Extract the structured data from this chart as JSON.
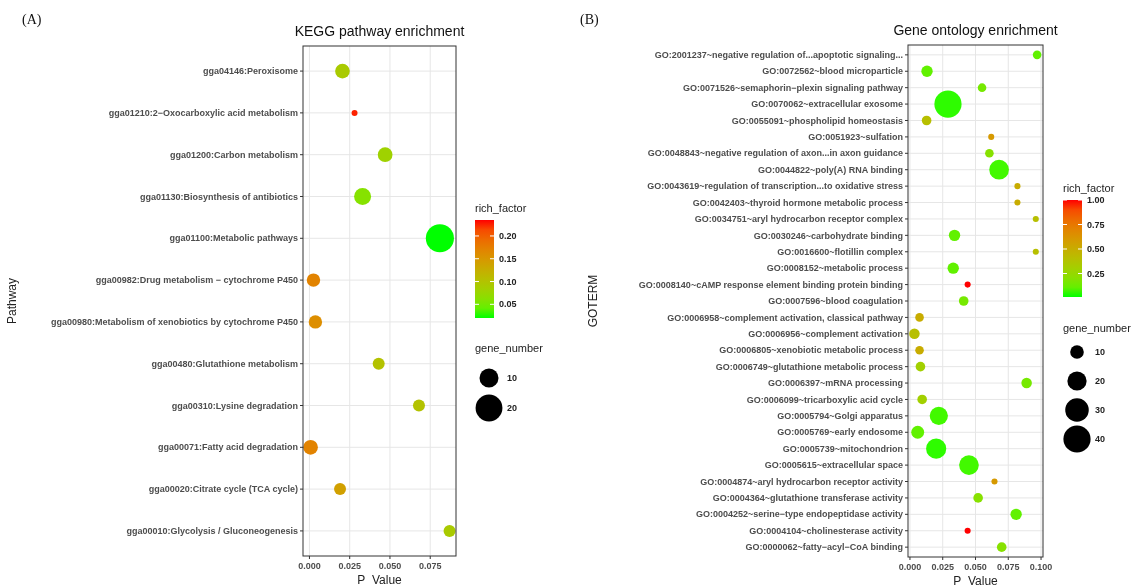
{
  "chart_data": [
    {
      "type": "bubble",
      "orientation": "horizontal",
      "title": "KEGG pathway enrichment",
      "xlabel": "P_Value",
      "ylabel": "Pathway",
      "clabel": "rich_factor",
      "legend_title": "gene_number",
      "grid": true,
      "annotations": [
        "(A)"
      ],
      "categories": [
        "gga04146:Peroxisome",
        "gga01210:2−Oxocarboxylic acid metabolism",
        "gga01200:Carbon metabolism",
        "gga01130:Biosynthesis of antibiotics",
        "gga01100:Metabolic pathways",
        "gga00982:Drug metabolism − cytochrome P450",
        "gga00980:Metabolism of xenobiotics by cytochrome P450",
        "gga00480:Glutathione metabolism",
        "gga00310:Lysine degradation",
        "gga00071:Fatty acid degradation",
        "gga00020:Citrate cycle (TCA cycle)",
        "gga00010:Glycolysis / Gluconeogenesis"
      ],
      "values": [
        0.0205,
        0.028,
        0.047,
        0.033,
        0.081,
        0.0025,
        0.0037,
        0.043,
        0.068,
        0.0007,
        0.019,
        0.087
      ],
      "sizes": [
        6,
        1,
        6,
        8,
        22,
        5,
        5,
        4,
        4,
        6,
        4,
        4
      ],
      "cvalues": [
        0.09,
        0.23,
        0.08,
        0.06,
        0.02,
        0.17,
        0.16,
        0.1,
        0.1,
        0.17,
        0.14,
        0.09
      ],
      "size_legend": [
        10,
        20
      ],
      "xlim": [
        -0.004,
        0.091
      ],
      "xticks": [
        {
          "value": 0,
          "label": "0.000"
        },
        {
          "value": 0.025,
          "label": "0.025"
        },
        {
          "value": 0.05,
          "label": "0.050"
        },
        {
          "value": 0.075,
          "label": "0.075"
        }
      ],
      "clim": [
        0.02,
        0.235
      ],
      "cticks": [
        {
          "value": 0.05,
          "label": "0.05"
        },
        {
          "value": 0.1,
          "label": "0.10"
        },
        {
          "value": 0.15,
          "label": "0.15"
        },
        {
          "value": 0.2,
          "label": "0.20"
        }
      ]
    },
    {
      "type": "bubble",
      "orientation": "horizontal",
      "title": "Gene ontology enrichment",
      "xlabel": "P_Value",
      "ylabel": "GOTERM",
      "clabel": "rich_factor",
      "legend_title": "gene_number",
      "grid": true,
      "annotations": [
        "(B)"
      ],
      "categories": [
        "GO:2001237~negative regulation of...apoptotic signaling...",
        "GO:0072562~blood microparticle",
        "GO:0071526~semaphorin−plexin signaling pathway",
        "GO:0070062~extracellular exosome",
        "GO:0055091~phospholipid homeostasis",
        "GO:0051923~sulfation",
        "GO:0048843~negative regulation of axon...in axon guidance",
        "GO:0044822~poly(A) RNA binding",
        "GO:0043619~regulation of transcription...to oxidative stress",
        "GO:0042403~thyroid hormone metabolic process",
        "GO:0034751~aryl hydrocarbon receptor complex",
        "GO:0030246~carbohydrate binding",
        "GO:0016600~flotillin complex",
        "GO:0008152~metabolic process",
        "GO:0008140~cAMP response element binding protein binding",
        "GO:0007596~blood coagulation",
        "GO:0006958~complement activation, classical pathway",
        "GO:0006956~complement activation",
        "GO:0006805~xenobiotic metabolic process",
        "GO:0006749~glutathione metabolic process",
        "GO:0006397~mRNA processing",
        "GO:0006099~tricarboxylic acid cycle",
        "GO:0005794~Golgi apparatus",
        "GO:0005769~early endosome",
        "GO:0005739~mitochondrion",
        "GO:0005615~extracellular space",
        "GO:0004874~aryl hydrocarbon receptor activity",
        "GO:0004364~glutathione transferase activity",
        "GO:0004252~serine−type endopeptidase activity",
        "GO:0004104~cholinesterase activity",
        "GO:0000062~fatty−acyl−CoA binding"
      ],
      "values": [
        0.097,
        0.013,
        0.055,
        0.029,
        0.0127,
        0.062,
        0.0606,
        0.068,
        0.082,
        0.082,
        0.096,
        0.034,
        0.096,
        0.033,
        0.044,
        0.041,
        0.0073,
        0.0034,
        0.0073,
        0.008,
        0.089,
        0.0093,
        0.022,
        0.0059,
        0.02,
        0.045,
        0.0645,
        0.052,
        0.081,
        0.044,
        0.07
      ],
      "sizes": [
        4,
        7,
        4,
        40,
        5,
        2,
        4,
        21,
        2,
        2,
        2,
        7,
        2,
        7,
        2,
        5,
        4,
        6,
        4,
        5,
        6,
        5,
        18,
        9,
        22,
        21,
        2,
        5,
        7,
        2,
        5
      ],
      "cvalues": [
        0.1,
        0.1,
        0.15,
        0.03,
        0.4,
        0.6,
        0.2,
        0.05,
        0.5,
        0.5,
        0.4,
        0.1,
        0.4,
        0.1,
        1.0,
        0.15,
        0.5,
        0.4,
        0.5,
        0.3,
        0.15,
        0.3,
        0.05,
        0.1,
        0.03,
        0.05,
        0.6,
        0.2,
        0.1,
        1.0,
        0.2
      ],
      "size_legend": [
        10,
        20,
        30,
        40
      ],
      "xlim": [
        -0.0015,
        0.1015
      ],
      "xticks": [
        {
          "value": 0,
          "label": "0.000"
        },
        {
          "value": 0.025,
          "label": "0.025"
        },
        {
          "value": 0.05,
          "label": "0.050"
        },
        {
          "value": 0.075,
          "label": "0.075"
        },
        {
          "value": 0.1,
          "label": "0.100"
        }
      ],
      "clim": [
        0.01,
        1.0
      ],
      "cticks": [
        {
          "value": 0.25,
          "label": "0.25"
        },
        {
          "value": 0.5,
          "label": "0.50"
        },
        {
          "value": 0.75,
          "label": "0.75"
        },
        {
          "value": 1.0,
          "label": "1.00"
        }
      ]
    }
  ]
}
